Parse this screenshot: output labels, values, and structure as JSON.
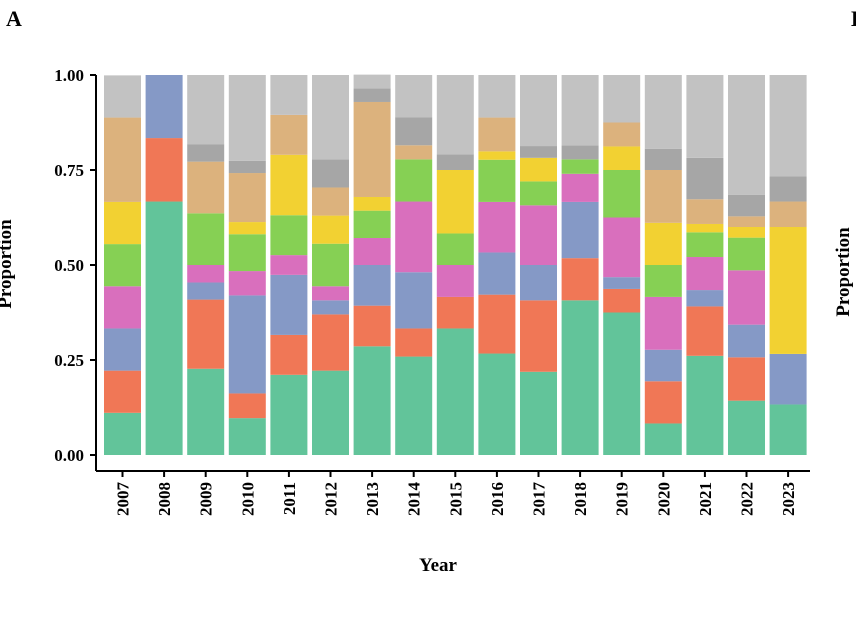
{
  "panel_a": {
    "letter": "A"
  },
  "panel_b": {
    "letter": "B",
    "ylabel": "Proportion"
  },
  "chart_data": {
    "type": "bar",
    "stacked": true,
    "xlabel": "Year",
    "ylabel": "Proportion",
    "ylim": [
      0,
      1
    ],
    "yticks": [
      "0.00",
      "0.25",
      "0.50",
      "0.75",
      "1.00"
    ],
    "grid": false,
    "legend": "none",
    "categories": [
      "2007",
      "2008",
      "2009",
      "2010",
      "2011",
      "2012",
      "2013",
      "2014",
      "2015",
      "2016",
      "2017",
      "2018",
      "2019",
      "2020",
      "2021",
      "2022",
      "2023"
    ],
    "series": [
      {
        "color": "#62c49a",
        "values": [
          0.111,
          0.667,
          0.227,
          0.097,
          0.211,
          0.222,
          0.286,
          0.259,
          0.333,
          0.267,
          0.219,
          0.407,
          0.375,
          0.083,
          0.261,
          0.143,
          0.133
        ]
      },
      {
        "color": "#f07756",
        "values": [
          0.111,
          0.167,
          0.182,
          0.065,
          0.105,
          0.148,
          0.107,
          0.074,
          0.083,
          0.155,
          0.188,
          0.111,
          0.062,
          0.111,
          0.13,
          0.114,
          0.0
        ]
      },
      {
        "color": "#8599c6",
        "values": [
          0.111,
          0.166,
          0.045,
          0.258,
          0.158,
          0.037,
          0.107,
          0.148,
          0.0,
          0.111,
          0.093,
          0.148,
          0.031,
          0.083,
          0.043,
          0.086,
          0.133
        ]
      },
      {
        "color": "#d96fbd",
        "values": [
          0.111,
          0.0,
          0.046,
          0.064,
          0.052,
          0.037,
          0.071,
          0.186,
          0.084,
          0.133,
          0.157,
          0.074,
          0.157,
          0.139,
          0.087,
          0.143,
          0.0
        ]
      },
      {
        "color": "#86d054",
        "values": [
          0.111,
          0.0,
          0.136,
          0.097,
          0.105,
          0.112,
          0.072,
          0.111,
          0.083,
          0.111,
          0.063,
          0.038,
          0.125,
          0.084,
          0.065,
          0.086,
          0.0
        ]
      },
      {
        "color": "#f2d132",
        "values": [
          0.111,
          0.0,
          0.0,
          0.032,
          0.159,
          0.074,
          0.036,
          0.0,
          0.167,
          0.022,
          0.062,
          0.0,
          0.062,
          0.111,
          0.022,
          0.028,
          0.334
        ]
      },
      {
        "color": "#dcb27d",
        "values": [
          0.222,
          0.0,
          0.136,
          0.129,
          0.105,
          0.074,
          0.25,
          0.037,
          0.0,
          0.089,
          0.0,
          0.0,
          0.063,
          0.139,
          0.065,
          0.028,
          0.067
        ]
      },
      {
        "color": "#a6a6a6",
        "values": [
          0.0,
          0.0,
          0.046,
          0.032,
          0.0,
          0.074,
          0.036,
          0.074,
          0.041,
          0.0,
          0.031,
          0.037,
          0.0,
          0.056,
          0.109,
          0.057,
          0.066
        ]
      },
      {
        "color": "#c2c2c2",
        "values": [
          0.111,
          0.0,
          0.182,
          0.226,
          0.105,
          0.222,
          0.036,
          0.111,
          0.209,
          0.112,
          0.187,
          0.185,
          0.125,
          0.194,
          0.218,
          0.315,
          0.267
        ]
      }
    ]
  }
}
